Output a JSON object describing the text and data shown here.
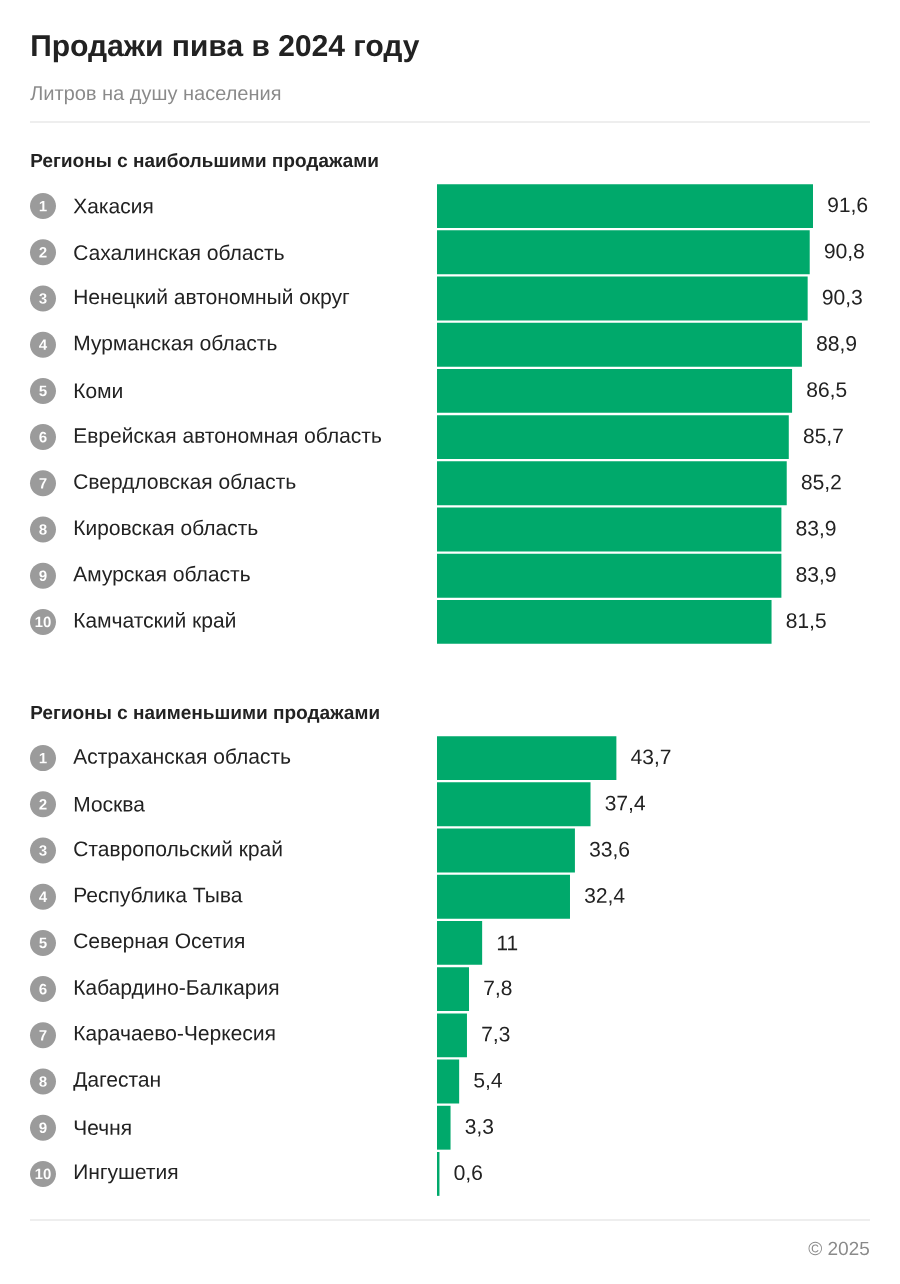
{
  "chart_data": [
    {
      "type": "other",
      "title": "Продажи пива в 2024 году",
      "subtitle": "Литров на душу населения",
      "annotations": [
        "© 2025"
      ]
    },
    {
      "type": "bar",
      "orientation": "horizontal",
      "title": "Регионы с наибольшими продажами",
      "color": "#00a96b",
      "categories": [
        "Хакасия",
        "Сахалинская область",
        "Ненецкий автономный округ",
        "Мурманская область",
        "Коми",
        "Еврейская автономная область",
        "Свердловская область",
        "Кировская область",
        "Амурская область",
        "Камчатский край"
      ],
      "values": [
        91.6,
        90.8,
        90.3,
        88.9,
        86.5,
        85.7,
        85.2,
        83.9,
        83.9,
        81.5
      ],
      "value_labels": [
        "91,6",
        "90,8",
        "90,3",
        "88,9",
        "86,5",
        "85,7",
        "85,2",
        "83,9",
        "83,9",
        "81,5"
      ],
      "annotations": [
        "1",
        "2",
        "3",
        "4",
        "5",
        "6",
        "7",
        "8",
        "9",
        "10"
      ]
    },
    {
      "type": "bar",
      "orientation": "horizontal",
      "title": "Регионы с наименьшими продажами",
      "color": "#00a96b",
      "categories": [
        "Астраханская область",
        "Москва",
        "Ставропольский край",
        "Республика Тыва",
        "Северная Осетия",
        "Кабардино-Балкария",
        "Карачаево-Черкесия",
        "Дагестан",
        "Чечня",
        "Ингушетия"
      ],
      "values": [
        43.7,
        37.4,
        33.6,
        32.4,
        11,
        7.8,
        7.3,
        5.4,
        3.3,
        0.6
      ],
      "value_labels": [
        "43,7",
        "37,4",
        "33,6",
        "32,4",
        "11",
        "7,8",
        "7,3",
        "5,4",
        "3,3",
        "0,6"
      ],
      "annotations": [
        "1",
        "2",
        "3",
        "4",
        "5",
        "6",
        "7",
        "8",
        "9",
        "10"
      ]
    }
  ]
}
